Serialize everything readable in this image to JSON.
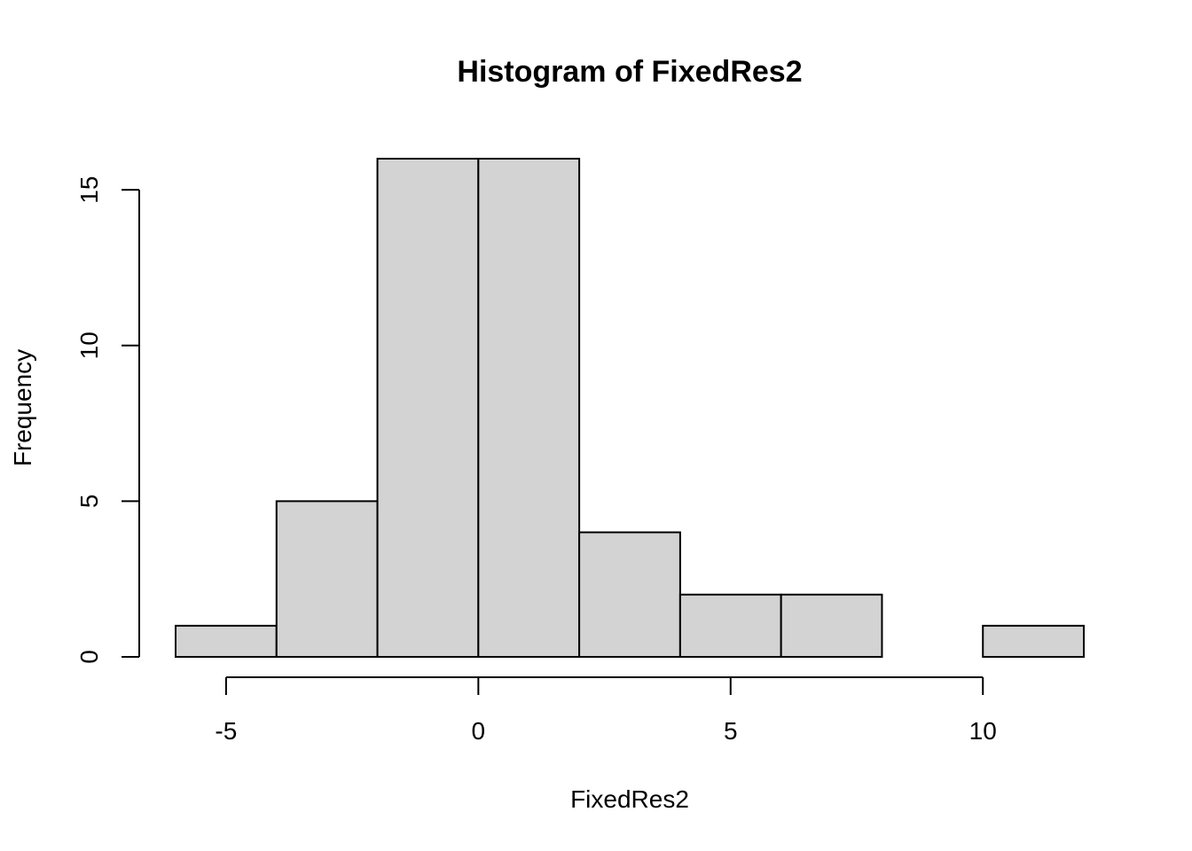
{
  "chart_data": {
    "type": "bar",
    "title": "Histogram of FixedRes2",
    "xlabel": "FixedRes2",
    "ylabel": "Frequency",
    "bin_edges": [
      -6,
      -4,
      -2,
      0,
      2,
      4,
      6,
      8,
      10,
      12
    ],
    "counts": [
      1,
      5,
      16,
      16,
      4,
      2,
      2,
      0,
      1
    ],
    "xlim": [
      -6,
      12
    ],
    "ylim": [
      0,
      16
    ],
    "x_ticks": [
      -5,
      0,
      5,
      10
    ],
    "y_ticks": [
      0,
      5,
      10,
      15
    ],
    "bar_fill": "#d3d3d3",
    "bar_stroke": "#000000",
    "grid": false,
    "legend": "none"
  }
}
